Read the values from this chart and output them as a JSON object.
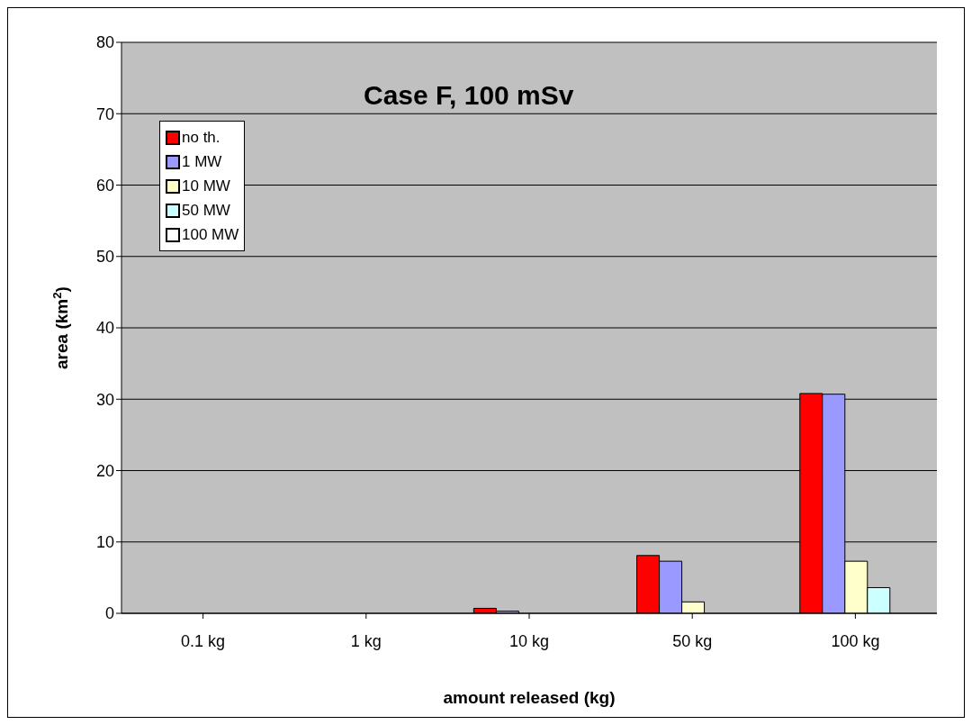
{
  "chart_data": {
    "type": "bar",
    "title": "Case F, 100 mSv",
    "xlabel": "amount released (kg)",
    "ylabel": "area (km$^{2}$)",
    "categories": [
      "0.1 kg",
      "1 kg",
      "10 kg",
      "50 kg",
      "100 kg"
    ],
    "series": [
      {
        "name": "no th.",
        "color": "#ff0000",
        "values": [
          0,
          0,
          0.7,
          8.1,
          30.8
        ]
      },
      {
        "name": "1 MW",
        "color": "#9999ff",
        "values": [
          0,
          0,
          0.3,
          7.3,
          30.7
        ]
      },
      {
        "name": "10 MW",
        "color": "#ffffcc",
        "values": [
          0,
          0,
          0,
          1.6,
          7.3
        ]
      },
      {
        "name": "50 MW",
        "color": "#ccffff",
        "values": [
          0,
          0,
          0,
          0,
          3.6
        ]
      },
      {
        "name": "100 MW",
        "color": "#ffffff",
        "values": [
          0,
          0,
          0,
          0,
          0
        ]
      }
    ],
    "ylim": [
      0,
      80
    ],
    "yticks": [
      0,
      10,
      20,
      30,
      40,
      50,
      60,
      70,
      80
    ],
    "grid": "y",
    "legend": "top left"
  }
}
